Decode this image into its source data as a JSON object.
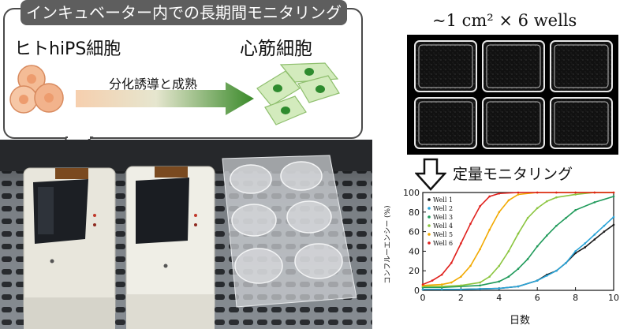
{
  "callout": {
    "title": "インキュベーター内での長期間モニタリング",
    "source_label": "ヒトhiPS細胞",
    "target_label": "心筋細胞",
    "process_label": "分化誘導と成熟"
  },
  "wells": {
    "title": "~1 cm² × 6 wells",
    "quant_label": "定量モニタリング"
  },
  "colors": {
    "ips_cell": "#f2b38c",
    "cardio_cell": "#cfe8b4",
    "nucleus": "#2e8b2e",
    "arrow_start": "#f4c7a3",
    "arrow_end": "#3a8a2a"
  },
  "chart_data": {
    "type": "scatter",
    "xlabel": "日数",
    "ylabel": "コンフルーエンシー (%)",
    "xlim": [
      0,
      10
    ],
    "ylim": [
      0,
      100
    ],
    "xticks": [
      0,
      2,
      4,
      6,
      8,
      10
    ],
    "yticks": [
      0,
      20,
      40,
      60,
      80,
      100
    ],
    "legend_position": "top-left",
    "series": [
      {
        "name": "Well 1",
        "color": "#1a1a1a",
        "x": [
          0,
          1,
          2,
          3,
          4,
          5,
          6,
          6.5,
          7,
          7.5,
          8,
          8.5,
          9,
          9.5,
          10
        ],
        "y": [
          1,
          1,
          1,
          1.5,
          2,
          4,
          10,
          16,
          20,
          28,
          38,
          44,
          52,
          60,
          67
        ]
      },
      {
        "name": "Well 2",
        "color": "#2aa4d8",
        "x": [
          0,
          1,
          2,
          3,
          4,
          5,
          6,
          6.5,
          7,
          7.5,
          8,
          8.5,
          9,
          9.5,
          10
        ],
        "y": [
          1,
          1,
          1,
          1.5,
          2,
          4,
          10,
          15,
          20,
          28,
          40,
          48,
          57,
          66,
          75
        ]
      },
      {
        "name": "Well 3",
        "color": "#1f9a5a",
        "x": [
          0,
          1,
          2,
          3,
          4,
          4.5,
          5,
          5.5,
          6,
          6.5,
          7,
          7.5,
          8,
          9,
          10
        ],
        "y": [
          3,
          3,
          4,
          5,
          9,
          14,
          22,
          32,
          45,
          56,
          66,
          74,
          82,
          90,
          96
        ]
      },
      {
        "name": "Well 4",
        "color": "#8bc53f",
        "x": [
          0,
          1,
          2,
          3,
          3.5,
          4,
          4.5,
          5,
          5.5,
          6,
          6.5,
          7,
          8,
          9,
          10
        ],
        "y": [
          4,
          4,
          5,
          8,
          14,
          25,
          40,
          58,
          74,
          84,
          91,
          95,
          98,
          100,
          100
        ]
      },
      {
        "name": "Well 5",
        "color": "#f2a900",
        "x": [
          0,
          1,
          1.5,
          2,
          2.5,
          3,
          3.5,
          4,
          4.5,
          5,
          6,
          7,
          8,
          9,
          10
        ],
        "y": [
          5,
          6,
          8,
          14,
          25,
          42,
          62,
          80,
          92,
          98,
          100,
          100,
          100,
          100,
          100
        ]
      },
      {
        "name": "Well 6",
        "color": "#e0201c",
        "x": [
          0,
          0.5,
          1,
          1.5,
          2,
          2.5,
          3,
          3.5,
          4,
          5,
          6,
          7,
          8,
          9,
          10
        ],
        "y": [
          6,
          10,
          16,
          28,
          48,
          68,
          86,
          96,
          99,
          100,
          100,
          100,
          100,
          100,
          100
        ]
      }
    ]
  }
}
